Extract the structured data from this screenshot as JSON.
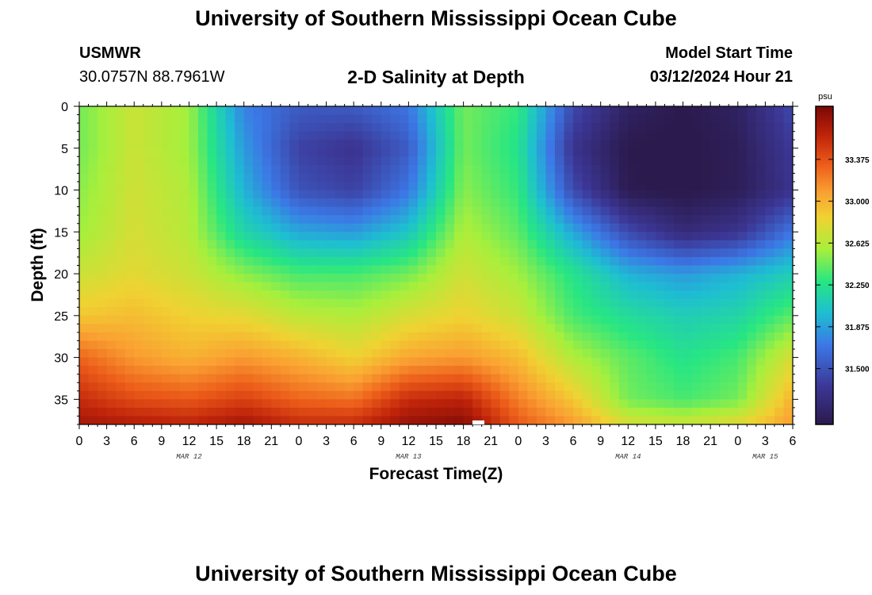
{
  "page": {
    "title_top": "University of Southern Mississippi Ocean Cube",
    "title_bottom": "University of Southern Mississippi Ocean Cube",
    "station": "USMWR",
    "coords": "30.0757N  88.7961W",
    "chart_title": "2-D Salinity at Depth",
    "model_start_label": "Model Start Time",
    "model_start_value": "03/12/2024 Hour 21"
  },
  "colors": {
    "low": "#2b1a4d",
    "mid": "#a8ef3c",
    "high": "#7a0805"
  },
  "chart_data": {
    "type": "heatmap",
    "title": "2-D Salinity at Depth",
    "xlabel": "Forecast Time(Z)",
    "ylabel": "Depth (ft)",
    "colorbar_unit": "psu",
    "xlim_hours": [
      0,
      78
    ],
    "ylim_ft": [
      0,
      38
    ],
    "x_tick_labels": [
      "0",
      "3",
      "6",
      "9",
      "12",
      "15",
      "18",
      "21",
      "0",
      "3",
      "6",
      "9",
      "12",
      "15",
      "18",
      "21",
      "0",
      "3",
      "6",
      "9",
      "12",
      "15",
      "18",
      "21",
      "0",
      "3",
      "6"
    ],
    "y_ticks": [
      0,
      5,
      10,
      15,
      20,
      25,
      30,
      35
    ],
    "date_labels": [
      {
        "hour": 12,
        "label": "MAR 12"
      },
      {
        "hour": 36,
        "label": "MAR 13"
      },
      {
        "hour": 60,
        "label": "MAR 14"
      },
      {
        "hour": 75,
        "label": "MAR 15"
      }
    ],
    "colorbar_ticks": [
      31.5,
      31.875,
      32.25,
      32.625,
      33.0,
      33.375
    ],
    "colorbar_tick_labels": [
      "31.500",
      "31.875",
      "32.250",
      "32.625",
      "33.000",
      "33.375"
    ],
    "color_range": [
      31.0,
      33.85
    ],
    "grid_hours": [
      0,
      6,
      12,
      18,
      24,
      30,
      36,
      42,
      48,
      54,
      60,
      66,
      72,
      78
    ],
    "grid_depths_ft": [
      0,
      5,
      10,
      15,
      20,
      25,
      30,
      35,
      38
    ],
    "values": [
      [
        32.45,
        32.7,
        32.55,
        31.75,
        31.55,
        31.55,
        31.7,
        32.45,
        32.3,
        31.45,
        31.1,
        31.0,
        31.1,
        31.45
      ],
      [
        32.45,
        32.7,
        32.55,
        31.85,
        31.4,
        31.3,
        31.55,
        32.45,
        32.25,
        31.3,
        31.0,
        30.98,
        31.05,
        31.35
      ],
      [
        32.5,
        32.72,
        32.6,
        31.95,
        31.5,
        31.4,
        31.7,
        32.5,
        32.3,
        31.45,
        31.02,
        30.98,
        31.05,
        31.3
      ],
      [
        32.55,
        32.75,
        32.62,
        32.15,
        31.9,
        31.85,
        32.05,
        32.6,
        32.4,
        31.9,
        31.45,
        31.2,
        31.3,
        31.7
      ],
      [
        32.7,
        32.8,
        32.7,
        32.5,
        32.35,
        32.35,
        32.45,
        32.72,
        32.55,
        32.25,
        31.95,
        31.85,
        31.95,
        32.1
      ],
      [
        32.9,
        32.95,
        32.85,
        32.8,
        32.65,
        32.6,
        32.75,
        32.85,
        32.7,
        32.35,
        32.2,
        32.1,
        32.15,
        32.4
      ],
      [
        33.3,
        33.1,
        33.0,
        33.1,
        33.0,
        32.85,
        33.05,
        33.1,
        32.95,
        32.6,
        32.4,
        32.25,
        32.35,
        32.75
      ],
      [
        33.55,
        33.4,
        33.35,
        33.45,
        33.3,
        33.25,
        33.55,
        33.6,
        33.2,
        32.9,
        32.45,
        32.35,
        32.45,
        33.0
      ],
      [
        33.7,
        33.65,
        33.6,
        33.7,
        33.55,
        33.55,
        33.75,
        33.8,
        33.35,
        33.1,
        32.75,
        32.7,
        32.8,
        33.1
      ]
    ]
  }
}
